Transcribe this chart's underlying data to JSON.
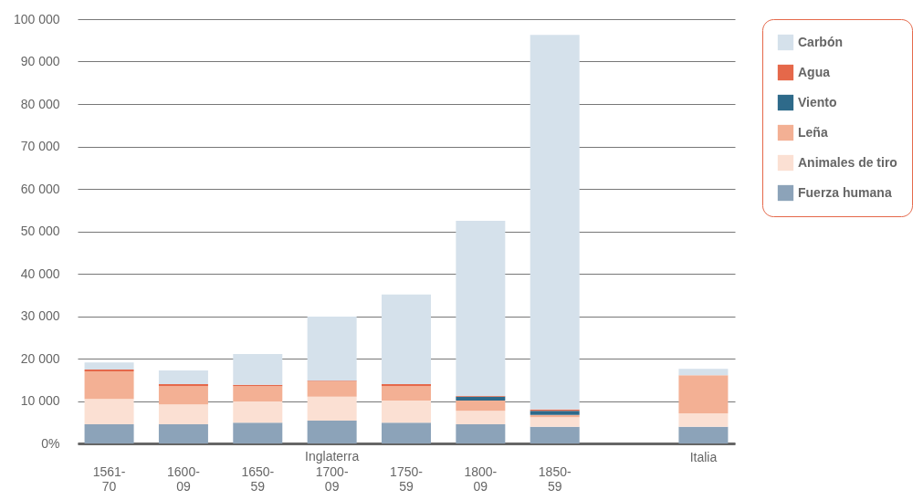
{
  "chart_data": {
    "type": "bar",
    "stacked": true,
    "categories": [
      "1561-70",
      "1600-09",
      "1650-59",
      "1700-09",
      "1750-59",
      "1800-09",
      "1850-59",
      null,
      "Italia"
    ],
    "series": [
      {
        "name": "Fuerza humana",
        "color": "#8ca3b9",
        "values": [
          4500,
          4500,
          4900,
          5400,
          4900,
          4500,
          3900,
          null,
          3900
        ]
      },
      {
        "name": "Animales de tiro",
        "color": "#fbe0d3",
        "values": [
          6000,
          4700,
          5000,
          5600,
          5200,
          3200,
          2300,
          null,
          3200
        ]
      },
      {
        "name": "Leña",
        "color": "#f3b094",
        "values": [
          6500,
          4300,
          3600,
          3600,
          3400,
          2400,
          500,
          null,
          9000
        ]
      },
      {
        "name": "Viento",
        "color": "#2e6a8a",
        "values": [
          0,
          0,
          0,
          0,
          0,
          900,
          1000,
          null,
          0
        ]
      },
      {
        "name": "Agua",
        "color": "#e5684a",
        "values": [
          400,
          500,
          300,
          200,
          500,
          200,
          300,
          null,
          0
        ]
      },
      {
        "name": "Carbón",
        "color": "#d5e1eb",
        "values": [
          1700,
          3200,
          7300,
          15100,
          21100,
          41300,
          88300,
          null,
          1500
        ]
      }
    ],
    "ylim": [
      0,
      100000
    ],
    "yticks": [
      {
        "value": 0,
        "label": "0%"
      },
      {
        "value": 10000,
        "label": "10 000"
      },
      {
        "value": 20000,
        "label": "20 000"
      },
      {
        "value": 30000,
        "label": "30 000"
      },
      {
        "value": 40000,
        "label": "40 000"
      },
      {
        "value": 50000,
        "label": "50 000"
      },
      {
        "value": 60000,
        "label": "60 000"
      },
      {
        "value": 70000,
        "label": "70 000"
      },
      {
        "value": 80000,
        "label": "80 000"
      },
      {
        "value": 90000,
        "label": "90 000"
      },
      {
        "value": 100000,
        "label": "100 000"
      }
    ],
    "grid": "y",
    "legend": "right",
    "annotations": [
      "Inglaterra"
    ]
  }
}
